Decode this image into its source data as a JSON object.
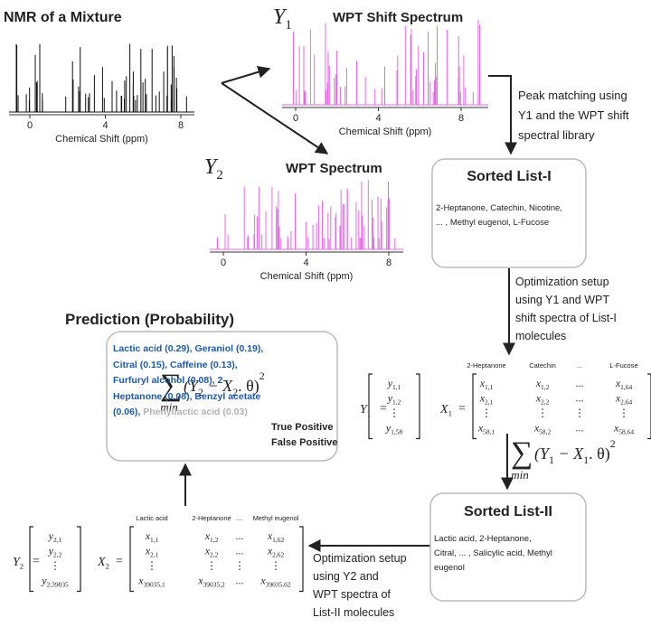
{
  "nmr": {
    "title": "NMR of a Mixture",
    "ticks": [
      "0",
      "4",
      "8"
    ],
    "axis_label": "Chemical Shift (ppm)"
  },
  "wpt_shift": {
    "symbol": {
      "base": "Y",
      "sub": "1"
    },
    "title": "WPT Shift Spectrum",
    "ticks": [
      "0",
      "4",
      "8"
    ],
    "axis_label": "Chemical Shift (ppm)"
  },
  "wpt": {
    "symbol": {
      "base": "Y",
      "sub": "2"
    },
    "title": "WPT Spectrum",
    "ticks": [
      "0",
      "4",
      "8"
    ],
    "axis_label": "Chemical Shift (ppm)"
  },
  "step1": {
    "lines": [
      "Peak matching using",
      "Y1 and the WPT shift",
      "spectral library"
    ]
  },
  "list1": {
    "title": "Sorted List-I",
    "lines": [
      "2-Heptanone, Catechin, Nicotine,",
      "... , Methyl eugenol, L-Fucose"
    ]
  },
  "step2": {
    "lines": [
      "Optimization setup",
      "using Y1 and WPT",
      "shift spectra of List-I",
      "molecules"
    ]
  },
  "matrix1": {
    "lhs": {
      "base": "Y",
      "sub": "1"
    },
    "lhs_eq": "=",
    "vector": [
      {
        "base": "y",
        "sub": "1,1"
      },
      {
        "base": "y",
        "sub": "1,2"
      },
      {
        "base": "⋮"
      },
      {
        "base": "y",
        "sub": "1,58"
      }
    ],
    "rhs": {
      "base": "X",
      "sub": "1"
    },
    "rhs_eq": "=",
    "headers": [
      "2-Heptanone",
      "Catechin",
      "...",
      "L-Fucose"
    ],
    "rows": [
      [
        {
          "base": "x",
          "sub": "1,1"
        },
        {
          "base": "x",
          "sub": "1,2"
        },
        {
          "base": "..."
        },
        {
          "base": "x",
          "sub": "1,64"
        }
      ],
      [
        {
          "base": "x",
          "sub": "2,1"
        },
        {
          "base": "x",
          "sub": "2,2"
        },
        {
          "base": "..."
        },
        {
          "base": "x",
          "sub": "2,64"
        }
      ],
      [
        {
          "base": "⋮"
        },
        {
          "base": "⋮"
        },
        {
          "base": "⋮"
        },
        {
          "base": "⋮"
        }
      ],
      [
        {
          "base": "x",
          "sub": "58,1"
        },
        {
          "base": "x",
          "sub": "58,2"
        },
        {
          "base": "..."
        },
        {
          "base": "x",
          "sub": "58,64"
        }
      ]
    ]
  },
  "objective1": {
    "operator": "∑",
    "under": "min",
    "expr": [
      {
        "text": "(Y"
      },
      {
        "text": "1",
        "style": "sub"
      },
      {
        "text": " − X"
      },
      {
        "text": "1",
        "style": "sub"
      },
      {
        "text": ". θ)"
      },
      {
        "text": "2",
        "style": "sup"
      }
    ]
  },
  "list2": {
    "title": "Sorted List-II",
    "lines": [
      "Lactic acid, 2-Heptanone,",
      "Citral,  ... , Salicylic acid, Methyl",
      "eugenol"
    ]
  },
  "step3": {
    "lines": [
      "Optimization setup",
      "using Y2 and",
      "WPT spectra of",
      "List-II molecules"
    ]
  },
  "matrix2": {
    "lhs": {
      "base": "Y",
      "sub": "2"
    },
    "lhs_eq": "=",
    "vector": [
      {
        "base": "y",
        "sub": "2,1"
      },
      {
        "base": "y",
        "sub": "2,2"
      },
      {
        "base": "⋮"
      },
      {
        "base": "y",
        "sub": "2,39035"
      }
    ],
    "rhs": {
      "base": "X",
      "sub": "2"
    },
    "rhs_eq": "=",
    "headers": [
      "Lactic acid",
      "2-Heptanone",
      "...",
      "Methyl eugenol"
    ],
    "rows": [
      [
        {
          "base": "x",
          "sub": "1,1"
        },
        {
          "base": "x",
          "sub": "1,2"
        },
        {
          "base": "..."
        },
        {
          "base": "x",
          "sub": "1,62"
        }
      ],
      [
        {
          "base": "x",
          "sub": "2,1"
        },
        {
          "base": "x",
          "sub": "2,2"
        },
        {
          "base": "..."
        },
        {
          "base": "x",
          "sub": "2,62"
        }
      ],
      [
        {
          "base": "⋮"
        },
        {
          "base": "⋮"
        },
        {
          "base": "⋮"
        },
        {
          "base": "⋮"
        }
      ],
      [
        {
          "base": "x",
          "sub": "39035,1"
        },
        {
          "base": "x",
          "sub": "39035,2"
        },
        {
          "base": "..."
        },
        {
          "base": "x",
          "sub": "39035,62"
        }
      ]
    ]
  },
  "objective2": {
    "operator": "∑",
    "under": "min",
    "expr": [
      {
        "text": "(Y"
      },
      {
        "text": "2",
        "style": "sub"
      },
      {
        "text": " − X"
      },
      {
        "text": "2",
        "style": "sub"
      },
      {
        "text": ". θ)"
      },
      {
        "text": "2",
        "style": "sup"
      }
    ]
  },
  "prediction": {
    "title": "Prediction (Probability)",
    "items": [
      {
        "text": "Lactic acid (0.29), Geraniol (0.19), Citral (0.15), Caffeine (0.13), Furfuryl alcohol (0.08), 2-Heptanone (0.08), Benzyl acetate (0.06), ",
        "color": "#1f5aa6"
      },
      {
        "text": "Phenyllactic acid (0.03)",
        "color": "#b0b0b0"
      }
    ],
    "legend": [
      {
        "text": "True Positive",
        "color": "#1f5aa6"
      },
      {
        "text": "False Positive",
        "color": "#b0b0b0"
      }
    ]
  }
}
